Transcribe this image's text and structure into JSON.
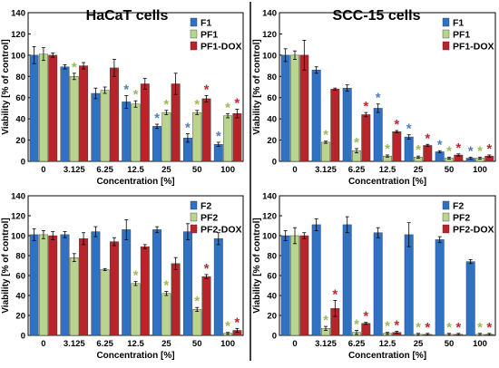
{
  "figure": {
    "column_titles": [
      "HaCaT cells",
      "SCC-15 cells"
    ],
    "colors": {
      "blue": "#2f72c4",
      "green": "#b8d48e",
      "red": "#b8242a",
      "star_blue": "#4f81bd",
      "star_green": "#9bbb59",
      "star_red": "#c0272d",
      "axis": "#000000"
    }
  },
  "chart_data": [
    {
      "type": "bar",
      "title": "HaCaT cells",
      "xlabel": "Concentration [%]",
      "ylabel": "Viability [% of control]",
      "ylim": [
        0,
        140
      ],
      "yticks": [
        0,
        20,
        40,
        60,
        80,
        100,
        120,
        140
      ],
      "categories": [
        "0",
        "3.125",
        "6.25",
        "12.5",
        "25",
        "50",
        "100"
      ],
      "legend_position": "top-right",
      "series": [
        {
          "name": "F1",
          "color": "blue",
          "values": [
            100,
            89,
            64,
            56,
            33,
            22,
            16
          ],
          "errors": [
            8,
            2,
            5,
            6,
            2,
            4,
            2
          ],
          "significant": [
            false,
            false,
            false,
            true,
            true,
            true,
            true
          ]
        },
        {
          "name": "PF1",
          "color": "green",
          "values": [
            101,
            80,
            67,
            54,
            46,
            46,
            43
          ],
          "errors": [
            6,
            3,
            3,
            3,
            2,
            2,
            2
          ],
          "significant": [
            false,
            true,
            false,
            true,
            true,
            true,
            true
          ]
        },
        {
          "name": "PF1-DOX",
          "color": "red",
          "values": [
            100,
            90,
            88,
            73,
            73,
            59,
            45
          ],
          "errors": [
            2,
            3,
            8,
            5,
            10,
            3,
            4
          ],
          "significant": [
            false,
            false,
            false,
            false,
            false,
            true,
            true
          ]
        }
      ]
    },
    {
      "type": "bar",
      "title": "SCC-15 cells",
      "xlabel": "Concentration [%]",
      "ylabel": "Viability [% of control]",
      "ylim": [
        0,
        140
      ],
      "yticks": [
        0,
        20,
        40,
        60,
        80,
        100,
        120,
        140
      ],
      "categories": [
        "0",
        "3.125",
        "6.25",
        "12.5",
        "25",
        "50",
        "100"
      ],
      "legend_position": "top-right",
      "series": [
        {
          "name": "F1",
          "color": "blue",
          "values": [
            100,
            86,
            69,
            50,
            23,
            9,
            3
          ],
          "errors": [
            6,
            3,
            3,
            4,
            2,
            1,
            1
          ],
          "significant": [
            false,
            false,
            false,
            true,
            true,
            true,
            true
          ]
        },
        {
          "name": "PF1",
          "color": "green",
          "values": [
            100,
            18,
            10,
            5,
            4,
            3,
            3
          ],
          "errors": [
            4,
            1,
            2,
            1,
            1,
            1,
            1
          ],
          "significant": [
            false,
            true,
            true,
            true,
            true,
            true,
            true
          ]
        },
        {
          "name": "PF1-DOX",
          "color": "red",
          "values": [
            100,
            68,
            44,
            28,
            15,
            6,
            5
          ],
          "errors": [
            14,
            1,
            2,
            1,
            1,
            1,
            1
          ],
          "significant": [
            false,
            false,
            true,
            true,
            true,
            true,
            true
          ]
        }
      ]
    },
    {
      "type": "bar",
      "title": "",
      "xlabel": "Concentration [%]",
      "ylabel": "Viability [% of control]",
      "ylim": [
        0,
        140
      ],
      "yticks": [
        0,
        20,
        40,
        60,
        80,
        100,
        120,
        140
      ],
      "categories": [
        "0",
        "3.125",
        "6.25",
        "12.5",
        "25",
        "50",
        "100"
      ],
      "legend_position": "top-right",
      "series": [
        {
          "name": "F2",
          "color": "blue",
          "values": [
            101,
            101,
            104,
            106,
            106,
            104,
            97
          ],
          "errors": [
            6,
            3,
            5,
            10,
            3,
            8,
            6
          ],
          "significant": [
            false,
            false,
            false,
            false,
            false,
            false,
            false
          ]
        },
        {
          "name": "PF2",
          "color": "green",
          "values": [
            101,
            78,
            66,
            52,
            42,
            26,
            2
          ],
          "errors": [
            4,
            4,
            1,
            2,
            2,
            2,
            1
          ],
          "significant": [
            false,
            false,
            false,
            true,
            true,
            true,
            true
          ]
        },
        {
          "name": "PF2-DOX",
          "color": "red",
          "values": [
            100,
            97,
            94,
            89,
            72,
            59,
            5
          ],
          "errors": [
            4,
            6,
            4,
            2,
            6,
            2,
            2
          ],
          "significant": [
            false,
            false,
            false,
            false,
            false,
            true,
            true
          ]
        }
      ]
    },
    {
      "type": "bar",
      "title": "",
      "xlabel": "Concentration [%]",
      "ylabel": "Viability [% of control]",
      "ylim": [
        0,
        140
      ],
      "yticks": [
        0,
        20,
        40,
        60,
        80,
        100,
        120,
        140
      ],
      "categories": [
        "0",
        "3.125",
        "6.25",
        "12.5",
        "25",
        "50",
        "100"
      ],
      "legend_position": "top-right",
      "series": [
        {
          "name": "F2",
          "color": "blue",
          "values": [
            100,
            111,
            111,
            103,
            101,
            96,
            74
          ],
          "errors": [
            5,
            6,
            8,
            5,
            12,
            3,
            2
          ],
          "significant": [
            false,
            false,
            false,
            false,
            false,
            false,
            false
          ]
        },
        {
          "name": "PF2",
          "color": "green",
          "values": [
            100,
            7,
            3,
            2,
            1,
            1,
            1
          ],
          "errors": [
            8,
            2,
            2,
            1,
            1,
            1,
            1
          ],
          "significant": [
            false,
            true,
            true,
            true,
            true,
            true,
            true
          ]
        },
        {
          "name": "PF2-DOX",
          "color": "red",
          "values": [
            100,
            27,
            12,
            3,
            1,
            1,
            1
          ],
          "errors": [
            3,
            8,
            1,
            1,
            1,
            1,
            1
          ],
          "significant": [
            false,
            true,
            true,
            true,
            true,
            true,
            true
          ]
        }
      ]
    }
  ]
}
